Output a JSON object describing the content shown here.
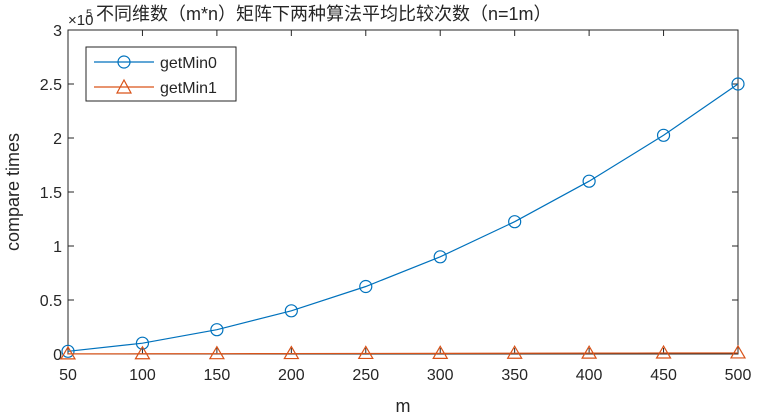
{
  "chart_data": {
    "type": "line",
    "title": "不同维数（m*n）矩阵下两种算法平均比较次数（n=1m）",
    "xlabel": "m",
    "ylabel": "compare times",
    "exponent_label": "×10",
    "exponent_power": "5",
    "xlim": [
      50,
      500
    ],
    "ylim": [
      0,
      3
    ],
    "xticks": [
      50,
      100,
      150,
      200,
      250,
      300,
      350,
      400,
      450,
      500
    ],
    "yticks": [
      0,
      0.5,
      1,
      1.5,
      2,
      2.5,
      3
    ],
    "ytick_labels": [
      "0",
      "0.5",
      "1",
      "1.5",
      "2",
      "2.5",
      "3"
    ],
    "grid": false,
    "legend_position": "top-left",
    "x": [
      50,
      100,
      150,
      200,
      250,
      300,
      350,
      400,
      450,
      500
    ],
    "series": [
      {
        "name": "getMin0",
        "color": "#0072BD",
        "marker": "circle",
        "values": [
          0.025,
          0.1,
          0.225,
          0.4,
          0.625,
          0.9,
          1.225,
          1.6,
          2.025,
          2.5
        ]
      },
      {
        "name": "getMin1",
        "color": "#D95319",
        "marker": "triangle",
        "values": [
          0.001,
          0.002,
          0.003,
          0.004,
          0.005,
          0.006,
          0.007,
          0.008,
          0.009,
          0.01
        ]
      }
    ]
  }
}
